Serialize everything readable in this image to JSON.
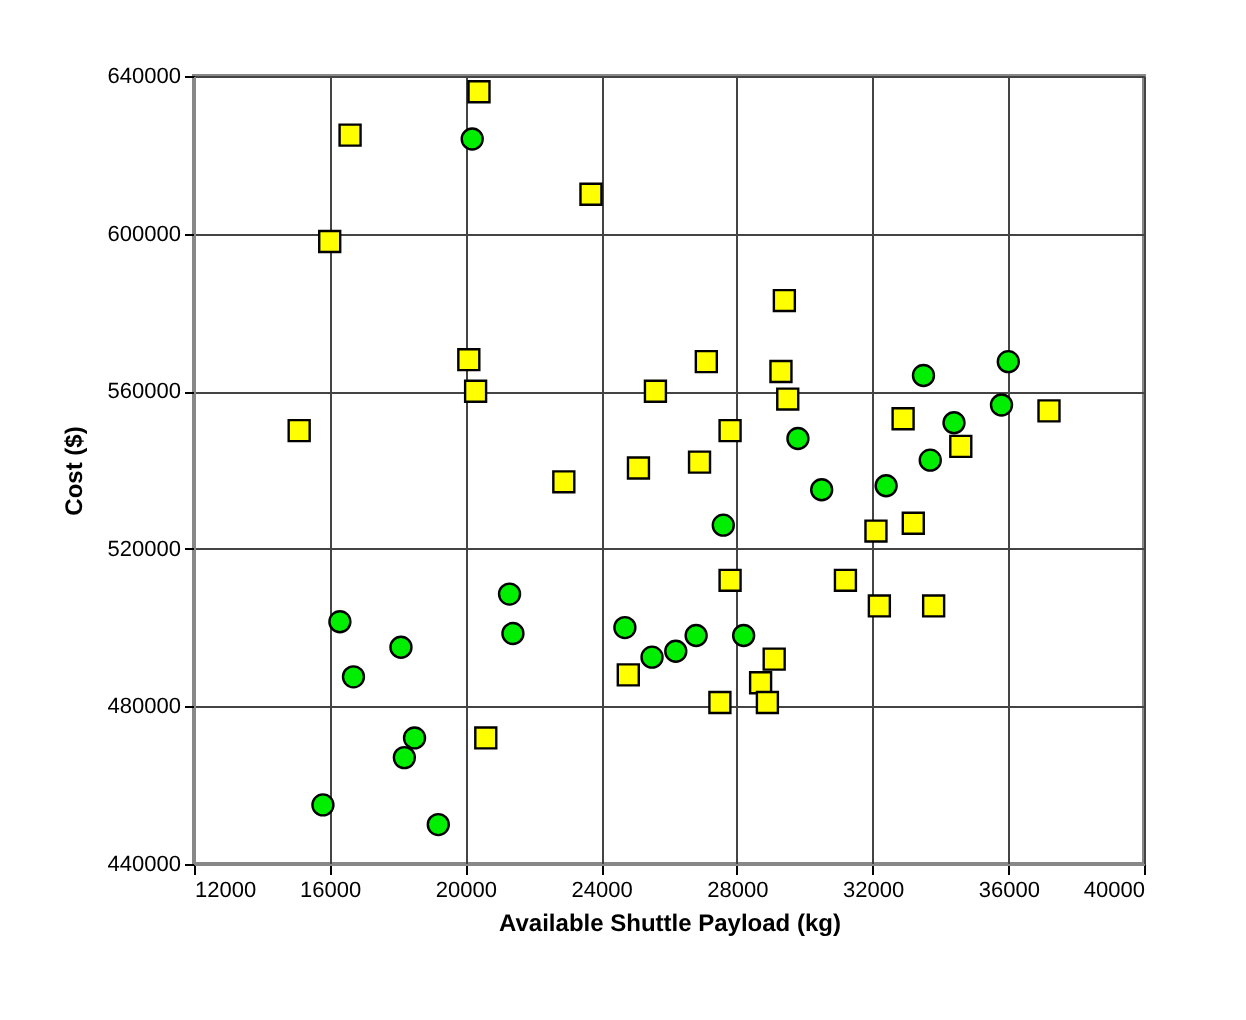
{
  "chart_data": {
    "type": "scatter",
    "xlabel": "Available Shuttle Payload (kg)",
    "ylabel": "Cost ($)",
    "xlim": [
      12000,
      40000
    ],
    "xticks": [
      12000,
      16000,
      20000,
      24000,
      28000,
      32000,
      36000,
      40000
    ],
    "ylim": [
      440000,
      640000
    ],
    "yticks": [
      440000,
      480000,
      520000,
      560000,
      600000,
      640000
    ],
    "grid": true,
    "series": [
      {
        "color": "#ffff00",
        "marker": "square",
        "x": [
          20400,
          16600,
          23700,
          16000,
          20100,
          20300,
          25600,
          15100,
          22900,
          25100,
          29400,
          27100,
          29300,
          29500,
          27800,
          26900,
          32900,
          37200,
          34600,
          33200,
          32100,
          27800,
          31200,
          32200,
          33800,
          29100,
          28700,
          28900,
          27500,
          24800,
          20600
        ],
        "values": [
          636000,
          625000,
          610000,
          598000,
          568000,
          560000,
          560000,
          550000,
          537000,
          540500,
          583000,
          567500,
          565000,
          558000,
          550000,
          542000,
          553000,
          555000,
          546000,
          526500,
          524500,
          512000,
          512000,
          505500,
          505500,
          492000,
          486000,
          481000,
          481000,
          488000,
          472000
        ]
      },
      {
        "color": "#00ee00",
        "marker": "circle",
        "x": [
          20200,
          29800,
          33500,
          36000,
          35800,
          34400,
          33700,
          32400,
          30500,
          27600,
          28200,
          26800,
          26200,
          25500,
          16300,
          18100,
          16700,
          21300,
          21400,
          24700,
          18500,
          18200,
          15800,
          19200
        ],
        "values": [
          624000,
          548000,
          564000,
          567500,
          556500,
          552000,
          542500,
          536000,
          535000,
          526000,
          498000,
          498000,
          494000,
          492500,
          501500,
          495000,
          487500,
          508500,
          498500,
          500000,
          472000,
          467000,
          455000,
          450000
        ]
      }
    ]
  }
}
